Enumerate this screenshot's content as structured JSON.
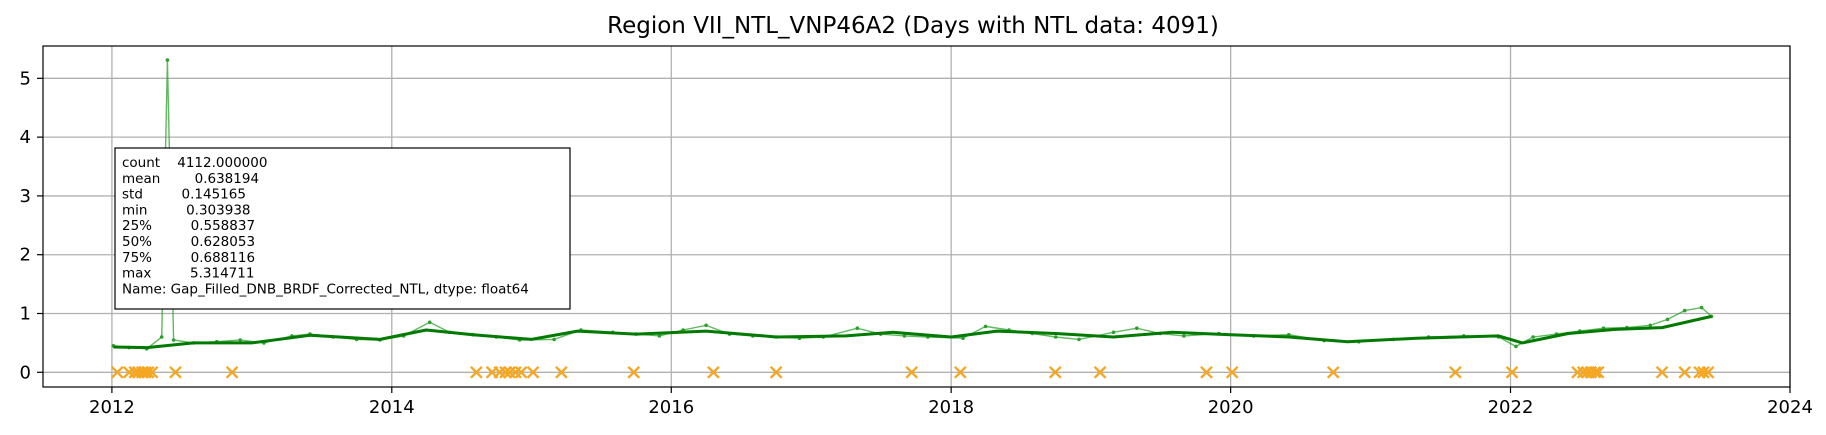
{
  "chart_data": {
    "type": "line",
    "title": "Region VII_NTL_VNP46A2 (Days with NTL data: 4091)",
    "xlabel": "",
    "ylabel": "",
    "xlim": [
      "2011-07-05",
      "2024-01-01"
    ],
    "ylim": [
      -0.25,
      5.55
    ],
    "grid": true,
    "x_ticks": [
      "2012-01-01",
      "2014-01-01",
      "2016-01-01",
      "2018-01-01",
      "2020-01-01",
      "2022-01-01",
      "2024-01-01"
    ],
    "x_tick_labels": [
      "2012",
      "2014",
      "2016",
      "2018",
      "2020",
      "2022",
      "2024"
    ],
    "y_ticks": [
      0,
      1,
      2,
      3,
      4,
      5
    ],
    "y_tick_labels": [
      "0",
      "1",
      "2",
      "3",
      "4",
      "5"
    ],
    "colors": {
      "raw_series": "#2ca02c",
      "smoothed_series": "#007a00",
      "missing_markers": "#f5a623",
      "grid": "#b0b0b0"
    },
    "series": [
      {
        "style": "thin line with point markers, semi-transparent green",
        "x": [
          "2012-01-05",
          "2012-02-15",
          "2012-04-01",
          "2012-05-10",
          "2012-05-25",
          "2012-06-10",
          "2012-08-01",
          "2012-10-01",
          "2012-12-01",
          "2013-02-01",
          "2013-04-15",
          "2013-06-01",
          "2013-08-01",
          "2013-10-01",
          "2013-12-01",
          "2014-02-01",
          "2014-04-10",
          "2014-06-01",
          "2014-08-01",
          "2014-10-01",
          "2014-12-01",
          "2015-03-01",
          "2015-05-10",
          "2015-08-01",
          "2015-10-01",
          "2015-12-01",
          "2016-02-01",
          "2016-04-01",
          "2016-06-01",
          "2016-08-01",
          "2016-10-01",
          "2016-12-01",
          "2017-02-01",
          "2017-05-01",
          "2017-07-01",
          "2017-09-01",
          "2017-11-01",
          "2018-02-01",
          "2018-04-01",
          "2018-06-01",
          "2018-08-01",
          "2018-10-01",
          "2018-12-01",
          "2019-03-01",
          "2019-05-01",
          "2019-07-01",
          "2019-09-01",
          "2019-12-01",
          "2020-03-01",
          "2020-06-01",
          "2020-09-01",
          "2020-12-01",
          "2021-03-01",
          "2021-06-01",
          "2021-09-01",
          "2021-12-01",
          "2022-01-15",
          "2022-03-01",
          "2022-05-01",
          "2022-07-01",
          "2022-09-01",
          "2022-11-01",
          "2023-01-01",
          "2023-02-15",
          "2023-04-01",
          "2023-05-15",
          "2023-06-10"
        ],
        "values": [
          0.45,
          0.42,
          0.4,
          0.6,
          5.31,
          0.55,
          0.5,
          0.52,
          0.55,
          0.5,
          0.62,
          0.65,
          0.6,
          0.56,
          0.55,
          0.62,
          0.85,
          0.68,
          0.64,
          0.6,
          0.55,
          0.56,
          0.72,
          0.68,
          0.65,
          0.62,
          0.72,
          0.8,
          0.65,
          0.62,
          0.6,
          0.58,
          0.6,
          0.75,
          0.65,
          0.62,
          0.6,
          0.58,
          0.78,
          0.72,
          0.66,
          0.6,
          0.56,
          0.68,
          0.75,
          0.66,
          0.62,
          0.66,
          0.62,
          0.64,
          0.54,
          0.52,
          0.56,
          0.6,
          0.62,
          0.6,
          0.44,
          0.6,
          0.65,
          0.7,
          0.75,
          0.76,
          0.8,
          0.9,
          1.05,
          1.1,
          0.95
        ]
      },
      {
        "style": "bold smoothed trend line, dark green",
        "x": [
          "2012-01-05",
          "2012-04-01",
          "2012-08-01",
          "2013-01-01",
          "2013-06-01",
          "2013-12-01",
          "2014-04-01",
          "2014-08-01",
          "2015-01-01",
          "2015-05-01",
          "2015-10-01",
          "2016-04-01",
          "2016-10-01",
          "2017-04-01",
          "2017-08-01",
          "2018-01-01",
          "2018-05-01",
          "2018-10-01",
          "2019-03-01",
          "2019-08-01",
          "2020-01-01",
          "2020-06-01",
          "2020-11-01",
          "2021-05-01",
          "2021-12-01",
          "2022-02-01",
          "2022-06-01",
          "2022-10-01",
          "2023-02-01",
          "2023-06-10"
        ],
        "values": [
          0.43,
          0.42,
          0.5,
          0.5,
          0.63,
          0.56,
          0.72,
          0.64,
          0.56,
          0.7,
          0.65,
          0.7,
          0.6,
          0.62,
          0.68,
          0.6,
          0.7,
          0.66,
          0.6,
          0.68,
          0.64,
          0.6,
          0.52,
          0.58,
          0.62,
          0.5,
          0.66,
          0.73,
          0.76,
          0.95
        ]
      },
      {
        "style": "orange x markers at y=0",
        "x": [
          "2012-01-15",
          "2012-02-15",
          "2012-03-01",
          "2012-03-10",
          "2012-03-20",
          "2012-03-28",
          "2012-04-05",
          "2012-04-15",
          "2012-06-15",
          "2012-11-10",
          "2014-08-10",
          "2014-09-20",
          "2014-10-10",
          "2014-10-25",
          "2014-11-05",
          "2014-11-20",
          "2014-12-05",
          "2015-01-05",
          "2015-03-20",
          "2015-09-25",
          "2016-04-20",
          "2016-10-01",
          "2017-09-20",
          "2018-01-25",
          "2018-09-30",
          "2019-01-25",
          "2019-10-30",
          "2020-01-05",
          "2020-09-25",
          "2021-08-10",
          "2022-01-05",
          "2022-06-25",
          "2022-07-10",
          "2022-07-20",
          "2022-07-30",
          "2022-08-10",
          "2022-08-18",
          "2023-02-01",
          "2023-04-01",
          "2023-05-10",
          "2023-05-20",
          "2023-06-01"
        ],
        "values": [
          0,
          0,
          0,
          0,
          0,
          0,
          0,
          0,
          0,
          0,
          0,
          0,
          0,
          0,
          0,
          0,
          0,
          0,
          0,
          0,
          0,
          0,
          0,
          0,
          0,
          0,
          0,
          0,
          0,
          0,
          0,
          0,
          0,
          0,
          0,
          0,
          0,
          0,
          0,
          0,
          0,
          0
        ]
      }
    ],
    "stats_box": {
      "lines": [
        "count    4112.000000",
        "mean        0.638194",
        "std         0.145165",
        "min         0.303938",
        "25%         0.558837",
        "50%         0.628053",
        "75%         0.688116",
        "max         5.314711",
        "Name: Gap_Filled_DNB_BRDF_Corrected_NTL, dtype: float64"
      ]
    }
  }
}
